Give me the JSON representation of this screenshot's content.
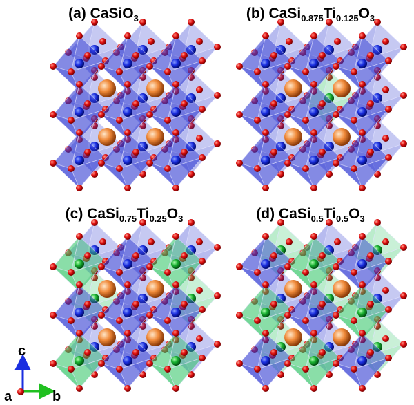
{
  "panels": [
    {
      "title": [
        "(a) CaSiO",
        "3"
      ]
    },
    {
      "title": [
        "(b) CaSi",
        "0.875",
        "Ti",
        "0.125",
        "O",
        "3"
      ]
    },
    {
      "title": [
        "(c) CaSi",
        "0.75",
        "Ti",
        "0.25",
        "O",
        "3"
      ]
    },
    {
      "title": [
        "(d) CaSi",
        "0.5",
        "Ti",
        "0.5",
        "O",
        "3"
      ]
    }
  ],
  "axes": {
    "c": "c",
    "a": "a",
    "b": "b"
  }
}
